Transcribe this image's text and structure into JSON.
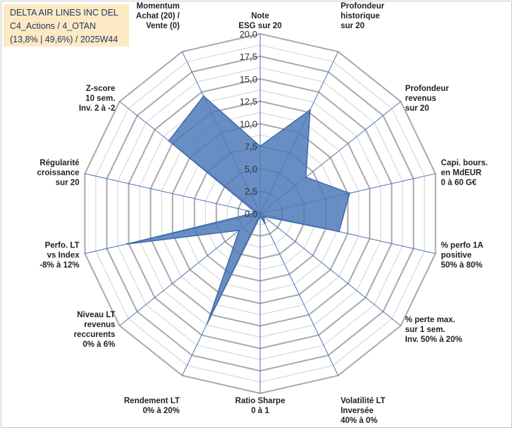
{
  "title": {
    "line1": "DELTA AIR LINES INC DEL",
    "line2": "C4_Actions / 4_OTAN",
    "line3": "(13,8% | 49,6%) / 2025W44"
  },
  "chart_data": {
    "type": "radar",
    "rmin": 0,
    "rmax": 20,
    "tick_step": 2.5,
    "tick_labels": [
      "0,0",
      "2,5",
      "5,0",
      "7,5",
      "10,0",
      "12,5",
      "15,0",
      "17,5",
      "20,0"
    ],
    "minor_gridlines": 16,
    "series_color": "#4f7ab8",
    "categories": [
      [
        "Note",
        "ESG sur 20"
      ],
      [
        "Profondeur",
        "historique",
        "sur 20"
      ],
      [
        "Profondeur",
        "revenus",
        "sur 20"
      ],
      [
        "Capi. bours.",
        "en MdEUR",
        "0 à 60 G€"
      ],
      [
        "% perfo 1A",
        "positive",
        "50% à 80%"
      ],
      [
        "% perte max.",
        "sur 1 sem.",
        "Inv. 50% à 20%"
      ],
      [
        "Volatilité LT",
        "Inversée",
        "40% à 0%"
      ],
      [
        "Ratio Sharpe",
        "0 à 1"
      ],
      [
        "Rendement LT",
        "0% à 20%"
      ],
      [
        "Niveau LT",
        "revenus",
        "reccurents",
        "0% à 6%"
      ],
      [
        "Perfo. LT",
        "vs Index",
        "-8% à 12%"
      ],
      [
        "Régularité",
        "croissance",
        "sur 20"
      ],
      [
        "Z-score",
        "10 sem.",
        "Inv. 2 à -2"
      ],
      [
        "Momentum",
        "Achat (20) /",
        "Vente (0)"
      ]
    ],
    "values": [
      7.5,
      12.8,
      6.5,
      10.2,
      9.0,
      0.5,
      1.2,
      0.3,
      13.5,
      3.0,
      15.2,
      0.5,
      13.0,
      14.5
    ]
  }
}
